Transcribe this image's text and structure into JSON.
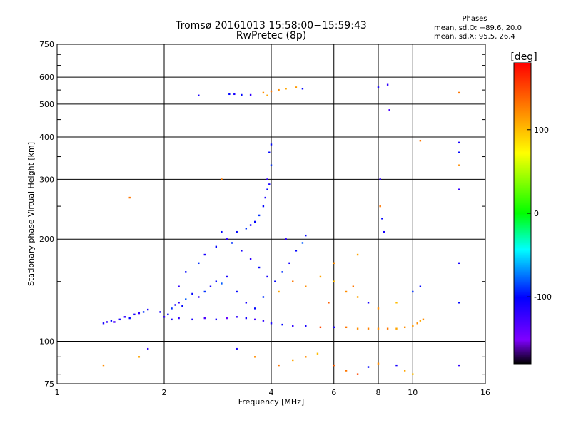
{
  "chart_data": {
    "type": "scatter",
    "title": "Tromsø 20161013 15:58:00−15:59:43",
    "subtitle": "RwPretec (8p)",
    "xlabel": "Frequency [MHz]",
    "ylabel": "Stationary phase Virtual Height [km]",
    "x_scale": "log",
    "y_scale": "log",
    "xlim": [
      1,
      16
    ],
    "ylim": [
      75,
      750
    ],
    "x_ticks": [
      1,
      2,
      4,
      6,
      8,
      10,
      16
    ],
    "y_ticks": [
      75,
      100,
      200,
      300,
      400,
      500,
      600,
      750
    ],
    "grid": true,
    "stats": {
      "heading": "Phases",
      "line_o": "mean, sd,O: −89.6, 20.0",
      "line_x": "mean, sd,X:  95.5, 26.4"
    },
    "colorbar": {
      "label": "[deg]",
      "range": [
        -180,
        180
      ],
      "ticks": [
        100,
        0,
        -100
      ]
    },
    "points": [
      [
        1.35,
        113,
        -110
      ],
      [
        1.38,
        114,
        -120
      ],
      [
        1.42,
        115,
        -100
      ],
      [
        1.45,
        114,
        -130
      ],
      [
        1.5,
        116,
        -110
      ],
      [
        1.55,
        118,
        -120
      ],
      [
        1.6,
        117,
        -100
      ],
      [
        1.65,
        120,
        -110
      ],
      [
        1.7,
        121,
        -120
      ],
      [
        1.75,
        122,
        -90
      ],
      [
        1.8,
        124,
        -110
      ],
      [
        1.35,
        85,
        120
      ],
      [
        1.7,
        90,
        110
      ],
      [
        1.8,
        95,
        -120
      ],
      [
        1.6,
        265,
        130
      ],
      [
        1.95,
        122,
        -110
      ],
      [
        2.0,
        118,
        -120
      ],
      [
        2.05,
        120,
        -100
      ],
      [
        2.1,
        125,
        -90
      ],
      [
        2.15,
        128,
        -110
      ],
      [
        2.2,
        130,
        -120
      ],
      [
        2.25,
        127,
        -100
      ],
      [
        2.3,
        133,
        -80
      ],
      [
        2.4,
        138,
        -100
      ],
      [
        2.5,
        135,
        -120
      ],
      [
        2.6,
        140,
        -90
      ],
      [
        2.7,
        145,
        -110
      ],
      [
        2.8,
        150,
        -100
      ],
      [
        2.9,
        148,
        -80
      ],
      [
        3.0,
        155,
        -110
      ],
      [
        2.2,
        145,
        -120
      ],
      [
        2.3,
        160,
        -100
      ],
      [
        2.5,
        170,
        -90
      ],
      [
        2.6,
        180,
        -110
      ],
      [
        2.8,
        190,
        -100
      ],
      [
        3.0,
        200,
        -120
      ],
      [
        2.9,
        210,
        -100
      ],
      [
        3.1,
        195,
        -90
      ],
      [
        2.1,
        116,
        -110
      ],
      [
        2.2,
        117,
        -120
      ],
      [
        2.4,
        116,
        -110
      ],
      [
        2.6,
        117,
        -130
      ],
      [
        2.8,
        116,
        -110
      ],
      [
        3.0,
        117,
        -140
      ],
      [
        3.2,
        118,
        -120
      ],
      [
        3.4,
        117,
        -110
      ],
      [
        3.6,
        116,
        -130
      ],
      [
        3.8,
        115,
        -120
      ],
      [
        4.0,
        113,
        -110
      ],
      [
        4.3,
        112,
        -100
      ],
      [
        4.6,
        111,
        -120
      ],
      [
        5.0,
        111,
        -110
      ],
      [
        5.5,
        110,
        150
      ],
      [
        6.0,
        110,
        -110
      ],
      [
        6.5,
        110,
        130
      ],
      [
        7.0,
        109,
        120
      ],
      [
        7.5,
        109,
        125
      ],
      [
        8.0,
        109,
        120
      ],
      [
        8.5,
        109,
        130
      ],
      [
        9.0,
        109,
        110
      ],
      [
        9.5,
        110,
        120
      ],
      [
        10.0,
        111,
        115
      ],
      [
        10.3,
        113,
        120
      ],
      [
        10.5,
        115,
        110
      ],
      [
        10.7,
        116,
        120
      ],
      [
        3.2,
        210,
        -100
      ],
      [
        3.4,
        215,
        -90
      ],
      [
        3.5,
        220,
        -110
      ],
      [
        3.6,
        225,
        -100
      ],
      [
        3.7,
        235,
        -90
      ],
      [
        3.8,
        250,
        -100
      ],
      [
        3.85,
        265,
        -110
      ],
      [
        3.9,
        280,
        -100
      ],
      [
        3.95,
        290,
        -110
      ],
      [
        3.9,
        300,
        -120
      ],
      [
        4.0,
        330,
        -90
      ],
      [
        3.95,
        360,
        -100
      ],
      [
        3.3,
        185,
        -110
      ],
      [
        3.5,
        175,
        -120
      ],
      [
        3.7,
        165,
        -100
      ],
      [
        3.9,
        155,
        -110
      ],
      [
        4.1,
        150,
        -100
      ],
      [
        4.3,
        160,
        -90
      ],
      [
        4.5,
        170,
        -110
      ],
      [
        4.7,
        185,
        -100
      ],
      [
        4.9,
        195,
        -80
      ],
      [
        5.0,
        205,
        -100
      ],
      [
        4.4,
        200,
        -120
      ],
      [
        3.2,
        140,
        -100
      ],
      [
        3.4,
        130,
        -110
      ],
      [
        3.6,
        125,
        -100
      ],
      [
        3.8,
        135,
        -90
      ],
      [
        4.2,
        140,
        110
      ],
      [
        4.6,
        150,
        130
      ],
      [
        5.0,
        145,
        120
      ],
      [
        5.5,
        155,
        110
      ],
      [
        6.0,
        150,
        100
      ],
      [
        6.5,
        140,
        120
      ],
      [
        7.0,
        135,
        110
      ],
      [
        7.5,
        130,
        -110
      ],
      [
        8.0,
        125,
        120
      ],
      [
        9.0,
        130,
        100
      ],
      [
        10.0,
        140,
        -90
      ],
      [
        10.5,
        145,
        -100
      ],
      [
        5.8,
        130,
        140
      ],
      [
        2.5,
        530,
        -110
      ],
      [
        3.05,
        535,
        -100
      ],
      [
        3.15,
        535,
        -110
      ],
      [
        3.3,
        532,
        -100
      ],
      [
        3.5,
        532,
        -120
      ],
      [
        3.8,
        540,
        120
      ],
      [
        3.9,
        530,
        110
      ],
      [
        4.0,
        545,
        130
      ],
      [
        4.2,
        550,
        120
      ],
      [
        4.4,
        555,
        110
      ],
      [
        4.7,
        560,
        115
      ],
      [
        4.9,
        555,
        -100
      ],
      [
        8.0,
        560,
        -110
      ],
      [
        8.5,
        570,
        -120
      ],
      [
        8.6,
        480,
        -130
      ],
      [
        13.5,
        540,
        130
      ],
      [
        13.5,
        385,
        -110
      ],
      [
        13.5,
        360,
        -100
      ],
      [
        13.5,
        330,
        120
      ],
      [
        13.5,
        280,
        -120
      ],
      [
        13.5,
        170,
        -110
      ],
      [
        13.5,
        130,
        -100
      ],
      [
        13.5,
        85,
        -120
      ],
      [
        10.5,
        390,
        130
      ],
      [
        3.2,
        95,
        -110
      ],
      [
        3.6,
        90,
        120
      ],
      [
        4.2,
        85,
        130
      ],
      [
        4.6,
        88,
        110
      ],
      [
        5.0,
        90,
        120
      ],
      [
        5.4,
        92,
        100
      ],
      [
        6.0,
        85,
        140
      ],
      [
        6.5,
        82,
        130
      ],
      [
        7.0,
        80,
        150
      ],
      [
        7.5,
        84,
        -100
      ],
      [
        8.0,
        86,
        120
      ],
      [
        9.0,
        85,
        -110
      ],
      [
        9.5,
        82,
        110
      ],
      [
        10.0,
        80,
        100
      ],
      [
        8.1,
        300,
        -120
      ],
      [
        8.1,
        250,
        130
      ],
      [
        8.2,
        230,
        -100
      ],
      [
        8.3,
        210,
        -110
      ],
      [
        2.9,
        300,
        130
      ],
      [
        4.0,
        380,
        -100
      ],
      [
        7.0,
        180,
        110
      ],
      [
        6.0,
        170,
        120
      ],
      [
        6.8,
        145,
        130
      ]
    ]
  }
}
